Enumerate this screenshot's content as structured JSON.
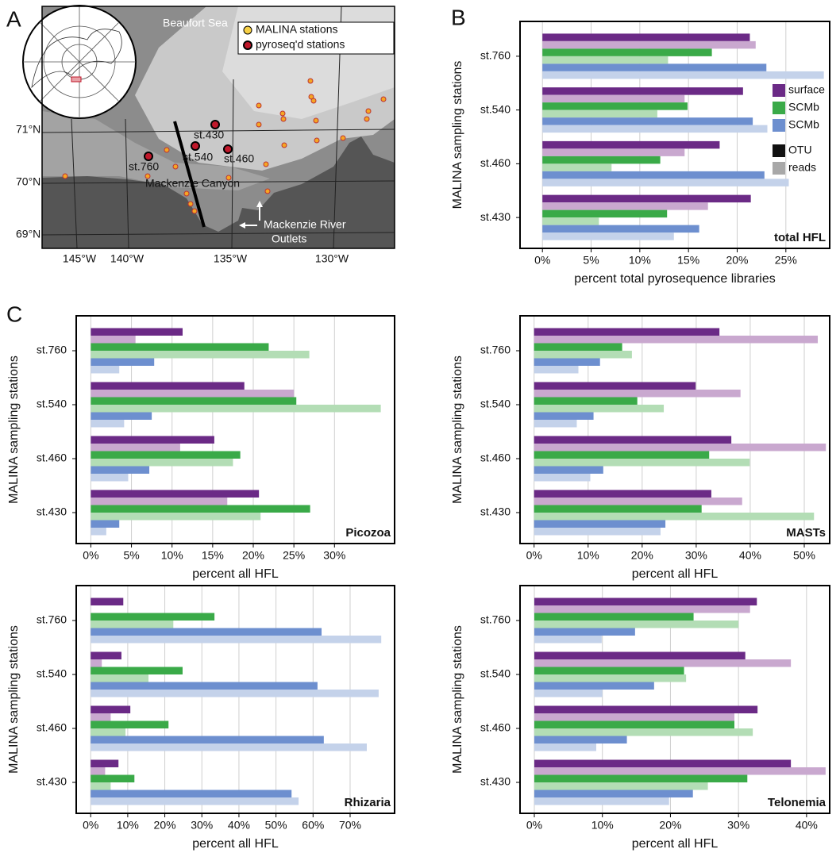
{
  "panels": {
    "a": "A",
    "b": "B",
    "c": "C"
  },
  "map": {
    "sea": "Beaufort Sea",
    "legend": [
      "MALINA stations",
      "pyroseq'd stations"
    ],
    "stations": [
      "st.430",
      "st.540",
      "st.460",
      "st.760"
    ],
    "canyon": "Mackenzie Canyon",
    "river": [
      "Mackenzie River",
      "Outlets"
    ],
    "lat_labels": [
      "71°N",
      "70°N",
      "69°N"
    ],
    "lon_labels": [
      "145°W",
      "140°W",
      "135°W",
      "130°W"
    ]
  },
  "chart_data": [
    {
      "type": "bar",
      "annotation": "total HFL",
      "xlabel": "percent total pyrosequence libraries",
      "ylabel": "MALINA sampling stations",
      "categories": [
        "st.760",
        "st.540",
        "st.460",
        "st.430"
      ],
      "series": [
        {
          "name": "surface",
          "color": "#6b2a86",
          "reads_color": "#c9a8cf",
          "otu": [
            21.3,
            20.6,
            18.2,
            21.4
          ],
          "reads": [
            21.9,
            14.6,
            14.6,
            17.0
          ]
        },
        {
          "name": "SCMb",
          "color": "#3aaa48",
          "reads_color": "#b3ddb5",
          "otu": [
            17.4,
            14.9,
            12.1,
            12.8
          ],
          "reads": [
            12.9,
            11.8,
            7.1,
            5.8
          ]
        },
        {
          "name": "SCMb",
          "color": "#6d8fcf",
          "reads_color": "#c4d2ea",
          "otu": [
            23.0,
            21.6,
            22.8,
            16.1
          ],
          "reads": [
            28.9,
            23.1,
            25.3,
            13.5
          ]
        }
      ],
      "measures": [
        "OTU",
        "reads"
      ],
      "measure_colors": [
        "#111111",
        "#a8a8a8"
      ],
      "legend": "right",
      "xlim": [
        -2.3,
        29.5
      ],
      "xticks": [
        {
          "value": 0,
          "label": "0%"
        },
        {
          "value": 5,
          "label": "5%"
        },
        {
          "value": 10,
          "label": "10%"
        },
        {
          "value": 15,
          "label": "15%"
        },
        {
          "value": 20,
          "label": "20%"
        },
        {
          "value": 25,
          "label": "25%"
        }
      ],
      "grid": true
    },
    {
      "type": "bar",
      "annotation": "Picozoa",
      "xlabel": "percent all HFL",
      "ylabel": "MALINA sampling stations",
      "categories": [
        "st.760",
        "st.540",
        "st.460",
        "st.430"
      ],
      "series": [
        {
          "color": "#6b2a86",
          "reads_color": "#c9a8cf",
          "otu": [
            11.3,
            18.9,
            15.2,
            20.7
          ],
          "reads": [
            5.5,
            25.0,
            11.0,
            16.8
          ]
        },
        {
          "color": "#3aaa48",
          "reads_color": "#b3ddb5",
          "otu": [
            21.9,
            25.3,
            18.4,
            27.0
          ],
          "reads": [
            26.9,
            35.7,
            17.5,
            20.9
          ]
        },
        {
          "color": "#6d8fcf",
          "reads_color": "#c4d2ea",
          "otu": [
            7.8,
            7.5,
            7.2,
            3.5
          ],
          "reads": [
            3.5,
            4.1,
            4.6,
            1.9
          ]
        }
      ],
      "xlim": [
        -1.8,
        37.4
      ],
      "xticks": [
        {
          "value": 0,
          "label": "0%"
        },
        {
          "value": 5,
          "label": "5%"
        },
        {
          "value": 10,
          "label": "10%"
        },
        {
          "value": 15,
          "label": "15%"
        },
        {
          "value": 20,
          "label": "20%"
        },
        {
          "value": 25,
          "label": "25%"
        },
        {
          "value": 30,
          "label": "30%"
        }
      ],
      "grid": true
    },
    {
      "type": "bar",
      "annotation": "MASTs",
      "xlabel": "percent all HFL",
      "ylabel": "MALINA sampling stations",
      "categories": [
        "st.760",
        "st.540",
        "st.460",
        "st.430"
      ],
      "series": [
        {
          "color": "#6b2a86",
          "reads_color": "#c9a8cf",
          "otu": [
            34.3,
            29.9,
            36.5,
            32.8
          ],
          "reads": [
            52.5,
            38.2,
            54.0,
            38.5
          ]
        },
        {
          "color": "#3aaa48",
          "reads_color": "#b3ddb5",
          "otu": [
            16.3,
            19.1,
            32.4,
            31.0
          ],
          "reads": [
            18.1,
            24.0,
            39.9,
            51.8
          ]
        },
        {
          "color": "#6d8fcf",
          "reads_color": "#c4d2ea",
          "otu": [
            12.2,
            11.0,
            12.8,
            24.3
          ],
          "reads": [
            8.2,
            7.9,
            10.4,
            23.4
          ]
        }
      ],
      "xlim": [
        -2.6,
        54.7
      ],
      "xticks": [
        {
          "value": 0,
          "label": "0%"
        },
        {
          "value": 10,
          "label": "10%"
        },
        {
          "value": 20,
          "label": "20%"
        },
        {
          "value": 30,
          "label": "30%"
        },
        {
          "value": 40,
          "label": "40%"
        },
        {
          "value": 50,
          "label": "50%"
        }
      ],
      "grid": true
    },
    {
      "type": "bar",
      "annotation": "Rhizaria",
      "xlabel": "percent all HFL",
      "ylabel": "MALINA sampling stations",
      "categories": [
        "st.760",
        "st.540",
        "st.460",
        "st.430"
      ],
      "series": [
        {
          "color": "#6b2a86",
          "reads_color": "#c9a8cf",
          "otu": [
            8.8,
            8.3,
            10.7,
            7.5
          ],
          "reads": [
            0,
            3.0,
            5.4,
            3.9
          ]
        },
        {
          "color": "#3aaa48",
          "reads_color": "#b3ddb5",
          "otu": [
            33.4,
            24.8,
            21.0,
            11.8
          ],
          "reads": [
            22.3,
            15.6,
            9.4,
            5.4
          ]
        },
        {
          "color": "#6d8fcf",
          "reads_color": "#c4d2ea",
          "otu": [
            62.3,
            61.2,
            62.9,
            54.2
          ],
          "reads": [
            78.4,
            77.7,
            74.5,
            56.1
          ]
        }
      ],
      "xlim": [
        -3.9,
        82.0
      ],
      "xticks": [
        {
          "value": 0,
          "label": "0%"
        },
        {
          "value": 10,
          "label": "10%"
        },
        {
          "value": 20,
          "label": "20%"
        },
        {
          "value": 30,
          "label": "30%"
        },
        {
          "value": 40,
          "label": "40%"
        },
        {
          "value": 50,
          "label": "50%"
        },
        {
          "value": 60,
          "label": "60%"
        },
        {
          "value": 70,
          "label": "70%"
        }
      ],
      "grid": true
    },
    {
      "type": "bar",
      "annotation": "Telonemia",
      "xlabel": "percent all HFL",
      "ylabel": "MALINA sampling stations",
      "categories": [
        "st.760",
        "st.540",
        "st.460",
        "st.430"
      ],
      "series": [
        {
          "color": "#6b2a86",
          "reads_color": "#c9a8cf",
          "otu": [
            32.7,
            31.0,
            32.8,
            37.7
          ],
          "reads": [
            31.7,
            37.7,
            29.4,
            42.8
          ]
        },
        {
          "color": "#3aaa48",
          "reads_color": "#b3ddb5",
          "otu": [
            23.4,
            22.0,
            29.4,
            31.3
          ],
          "reads": [
            30.0,
            22.3,
            32.1,
            25.5
          ]
        },
        {
          "color": "#6d8fcf",
          "reads_color": "#c4d2ea",
          "otu": [
            14.8,
            17.6,
            13.6,
            23.3
          ],
          "reads": [
            9.9,
            10.0,
            9.1,
            19.8
          ]
        }
      ],
      "xlim": [
        -2.1,
        43.4
      ],
      "xticks": [
        {
          "value": 0,
          "label": "0%"
        },
        {
          "value": 10,
          "label": "10%"
        },
        {
          "value": 20,
          "label": "20%"
        },
        {
          "value": 30,
          "label": "30%"
        },
        {
          "value": 40,
          "label": "40%"
        }
      ],
      "grid": true
    }
  ]
}
